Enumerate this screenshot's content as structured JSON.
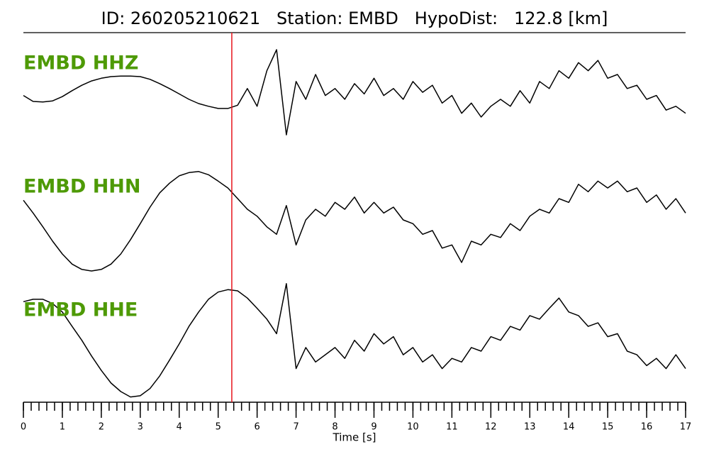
{
  "chart_data": {
    "type": "seismogram",
    "title": "ID: 260205210621   Station: EMBD   HypoDist:   122.8 [km]",
    "xlabel": "Time [s]",
    "xlim": [
      0,
      17
    ],
    "xticks": [
      0,
      1,
      2,
      3,
      4,
      5,
      6,
      7,
      8,
      9,
      10,
      11,
      12,
      13,
      14,
      15,
      16,
      17
    ],
    "x_minor_step": 0.2,
    "ylim": [
      -1,
      1
    ],
    "pick_time": 5.35,
    "pick_color": "#e8141c",
    "label_color": "#4e9a06",
    "x": [
      0,
      0.25,
      0.5,
      0.75,
      1,
      1.25,
      1.5,
      1.75,
      2,
      2.25,
      2.5,
      2.75,
      3,
      3.25,
      3.5,
      3.75,
      4,
      4.25,
      4.5,
      4.75,
      5,
      5.25,
      5.5,
      5.75,
      6,
      6.25,
      6.5,
      6.75,
      7,
      7.25,
      7.5,
      7.75,
      8,
      8.25,
      8.5,
      8.75,
      9,
      9.25,
      9.5,
      9.75,
      10,
      10.25,
      10.5,
      10.75,
      11,
      11.25,
      11.5,
      11.75,
      12,
      12.25,
      12.5,
      12.75,
      13,
      13.25,
      13.5,
      13.75,
      14,
      14.25,
      14.5,
      14.75,
      15,
      15.25,
      15.5,
      15.75,
      16,
      16.25,
      16.5,
      16.75,
      17
    ],
    "series": [
      {
        "name": "EMBD HHZ",
        "color": "#000000",
        "values": [
          -0.14,
          -0.25,
          -0.26,
          -0.24,
          -0.16,
          -0.05,
          0.05,
          0.13,
          0.18,
          0.21,
          0.22,
          0.22,
          0.21,
          0.16,
          0.08,
          -0.01,
          -0.11,
          -0.21,
          -0.29,
          -0.34,
          -0.38,
          -0.38,
          -0.32,
          -0.01,
          -0.34,
          0.32,
          0.71,
          -0.87,
          0.12,
          -0.21,
          0.25,
          -0.14,
          -0.01,
          -0.21,
          0.08,
          -0.11,
          0.18,
          -0.14,
          -0.01,
          -0.21,
          0.12,
          -0.08,
          0.05,
          -0.28,
          -0.14,
          -0.47,
          -0.28,
          -0.54,
          -0.34,
          -0.21,
          -0.34,
          -0.05,
          -0.28,
          0.12,
          -0.01,
          0.32,
          0.18,
          0.47,
          0.32,
          0.51,
          0.18,
          0.25,
          -0.01,
          0.05,
          -0.21,
          -0.14,
          -0.41,
          -0.34,
          -0.47
        ]
      },
      {
        "name": "EMBD HHN",
        "color": "#000000",
        "values": [
          0.37,
          0.13,
          -0.13,
          -0.4,
          -0.64,
          -0.83,
          -0.93,
          -0.96,
          -0.93,
          -0.83,
          -0.64,
          -0.37,
          -0.07,
          0.24,
          0.51,
          0.69,
          0.83,
          0.89,
          0.91,
          0.85,
          0.73,
          0.6,
          0.4,
          0.2,
          0.07,
          -0.13,
          -0.27,
          0.27,
          -0.47,
          0,
          0.2,
          0.07,
          0.33,
          0.2,
          0.43,
          0.13,
          0.33,
          0.13,
          0.24,
          0,
          -0.07,
          -0.27,
          -0.2,
          -0.53,
          -0.47,
          -0.8,
          -0.4,
          -0.47,
          -0.27,
          -0.33,
          -0.07,
          -0.2,
          0.07,
          0.2,
          0.13,
          0.4,
          0.33,
          0.67,
          0.53,
          0.73,
          0.6,
          0.73,
          0.53,
          0.6,
          0.33,
          0.47,
          0.2,
          0.4,
          0.13
        ]
      },
      {
        "name": "EMBD HHE",
        "color": "#000000",
        "values": [
          0.62,
          0.66,
          0.66,
          0.59,
          0.45,
          0.21,
          -0.02,
          -0.28,
          -0.52,
          -0.73,
          -0.87,
          -0.96,
          -0.94,
          -0.82,
          -0.61,
          -0.35,
          -0.08,
          0.21,
          0.45,
          0.66,
          0.78,
          0.82,
          0.8,
          0.68,
          0.51,
          0.33,
          0.09,
          0.92,
          -0.49,
          -0.14,
          -0.38,
          -0.26,
          -0.14,
          -0.32,
          -0.02,
          -0.2,
          0.09,
          -0.08,
          0.04,
          -0.26,
          -0.14,
          -0.38,
          -0.26,
          -0.49,
          -0.32,
          -0.38,
          -0.14,
          -0.2,
          0.04,
          -0.02,
          0.21,
          0.15,
          0.39,
          0.33,
          0.51,
          0.68,
          0.45,
          0.39,
          0.21,
          0.27,
          0.04,
          0.09,
          -0.2,
          -0.26,
          -0.44,
          -0.32,
          -0.49,
          -0.26,
          -0.49
        ]
      }
    ]
  }
}
